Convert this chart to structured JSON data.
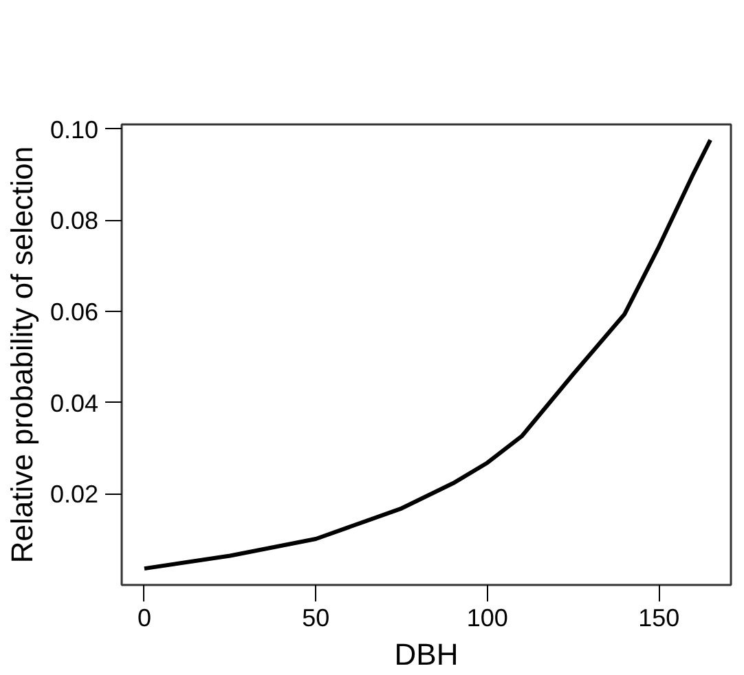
{
  "chart_data": {
    "type": "line",
    "xlabel": "DBH",
    "ylabel": "Relative probability of selection",
    "x": [
      0,
      25,
      50,
      75,
      90,
      100,
      110,
      125,
      140,
      150,
      160,
      165
    ],
    "series": [
      {
        "color": "#000000",
        "values": [
          0.0036,
          0.0064,
          0.0101,
          0.0168,
          0.0223,
          0.0268,
          0.0326,
          0.0462,
          0.0594,
          0.0742,
          0.0901,
          0.0976
        ]
      }
    ],
    "xlim": [
      -6.6,
      171
    ],
    "ylim": [
      0,
      0.101
    ],
    "xticks": [
      0,
      50,
      100,
      150
    ],
    "yticks": [
      {
        "value": 0.02,
        "label": "0.02"
      },
      {
        "value": 0.04,
        "label": "0.04"
      },
      {
        "value": 0.06,
        "label": "0.06"
      },
      {
        "value": 0.08,
        "label": "0.08"
      },
      {
        "value": 0.1,
        "label": "0.10"
      }
    ],
    "grid": false,
    "marker": "none",
    "line_style": "solid"
  }
}
